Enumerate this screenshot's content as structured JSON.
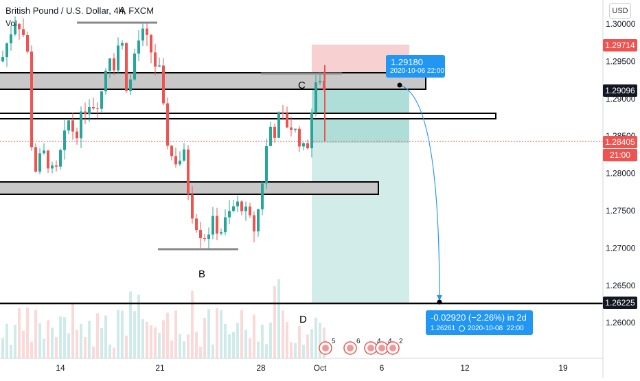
{
  "header": {
    "symbol_title": "British Pound / U.S. Dollar, 4h, FXCM",
    "indicator_label": "Vol"
  },
  "currency_button": "USD",
  "price_axis": {
    "ticks": [
      "1.30000",
      "1.29500",
      "1.29000",
      "1.28500",
      "1.28000",
      "1.27500",
      "1.27000",
      "1.26500",
      "1.26000"
    ],
    "tags": [
      {
        "label": "1.29714",
        "color": "#ef5350",
        "name": "price-tag-take-profit"
      },
      {
        "label": "1.29096",
        "color": "#131722",
        "name": "price-tag-entry"
      },
      {
        "label": "1.28405",
        "color": "#ef5350",
        "name": "price-tag-last"
      },
      {
        "label": "21:00",
        "color": "#ef5350",
        "name": "price-tag-countdown"
      },
      {
        "label": "1.26225",
        "color": "#131722",
        "name": "price-tag-target"
      }
    ]
  },
  "time_axis": {
    "labels": [
      "14",
      "21",
      "28",
      "Oct",
      "6",
      "12",
      "19"
    ]
  },
  "pattern_labels": [
    "A",
    "B",
    "C",
    "D"
  ],
  "callouts": {
    "top": {
      "price": "1.29180",
      "date": "2020-10-06 22:00"
    },
    "bottom": {
      "change": "-0.02920 (−2.26%) in 2d",
      "price": "1.26261",
      "date": "2020-10-08  22:00"
    }
  },
  "event_badges": [
    "5",
    "6",
    "4",
    "4",
    "2"
  ],
  "colors": {
    "bull": "#26a69a",
    "bear": "#ef5350",
    "zone_fill": "#c8c8c8",
    "stop_zone": "#f5c6c6",
    "target_zone": "#cdeae8",
    "callout": "#2196f3"
  }
}
